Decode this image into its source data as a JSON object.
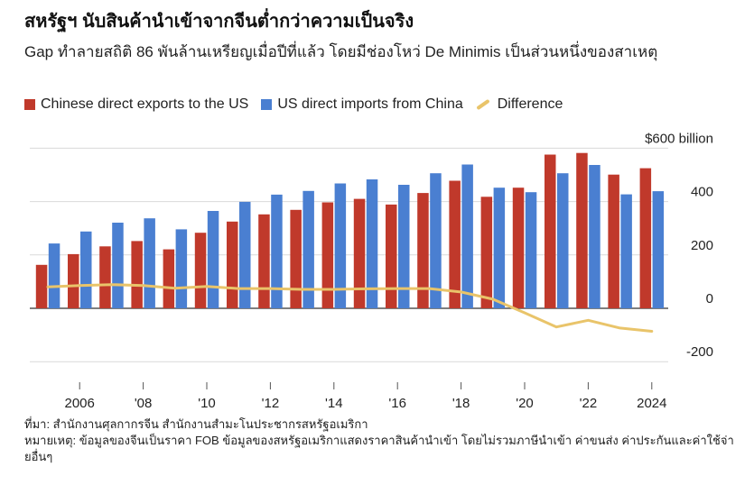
{
  "title": "สหรัฐฯ นับสินค้านำเข้าจากจีนต่ำกว่าความเป็นจริง",
  "subtitle": "Gap ทำลายสถิติ 86 พันล้านเหรียญเมื่อปีที่แล้ว โดยมีช่องโหว่ De Minimis เป็นส่วนหนึ่งของสาเหตุ",
  "legend": [
    {
      "label": "Chinese direct exports to the US",
      "color": "#c0392b",
      "kind": "bar"
    },
    {
      "label": "US direct imports from China",
      "color": "#4a7fd1",
      "kind": "bar"
    },
    {
      "label": "Difference",
      "color": "#e9c46a",
      "kind": "line"
    }
  ],
  "footer": {
    "source": "ที่มา: สำนักงานศุลกากรจีน สำนักงานสำมะโนประชากรสหรัฐอเมริกา",
    "note": "หมายเหตุ: ข้อมูลของจีนเป็นราคา FOB ข้อมูลของสหรัฐอเมริกาแสดงราคาสินค้านำเข้า โดยไม่รวมภาษีนำเข้า ค่าขนส่ง ค่าประกันและค่าใช้จ่ายอื่นๆ"
  },
  "chart_data": {
    "type": "bar",
    "x": [
      2005,
      2006,
      2007,
      2008,
      2009,
      2010,
      2011,
      2012,
      2013,
      2014,
      2015,
      2016,
      2017,
      2018,
      2019,
      2020,
      2021,
      2022,
      2023,
      2024
    ],
    "series": [
      {
        "name": "Chinese direct exports to the US",
        "type": "bar",
        "color": "#c0392b",
        "values": [
          163,
          203,
          232,
          252,
          221,
          283,
          325,
          352,
          369,
          397,
          410,
          389,
          432,
          478,
          418,
          452,
          576,
          582,
          501,
          525
        ]
      },
      {
        "name": "US direct imports from China",
        "type": "bar",
        "color": "#4a7fd1",
        "values": [
          243,
          288,
          321,
          337,
          296,
          365,
          399,
          426,
          440,
          468,
          483,
          463,
          506,
          539,
          452,
          435,
          506,
          537,
          427,
          439
        ]
      },
      {
        "name": "Difference",
        "type": "line",
        "color": "#e9c46a",
        "values": [
          80,
          85,
          89,
          85,
          75,
          82,
          74,
          74,
          71,
          71,
          73,
          74,
          74,
          61,
          34,
          -17,
          -70,
          -45,
          -74,
          -86
        ]
      }
    ],
    "tick_labels": [
      "2006",
      "'08",
      "'10",
      "'12",
      "'14",
      "'16",
      "'18",
      "'20",
      "'22",
      "2024"
    ],
    "tick_years": [
      2006,
      2008,
      2010,
      2012,
      2014,
      2016,
      2018,
      2020,
      2022,
      2024
    ],
    "y_ticks": [
      600,
      400,
      200,
      0,
      -200
    ],
    "y_tick_labels": [
      "$600 billion",
      "400",
      "200",
      "0",
      "-200"
    ],
    "ylim": [
      -250,
      620
    ],
    "grid": true
  }
}
